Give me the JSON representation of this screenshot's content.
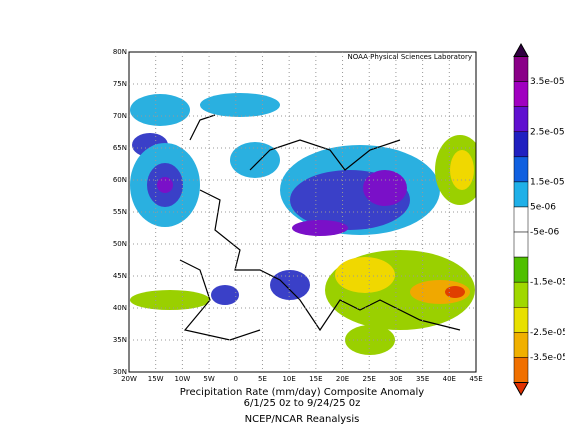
{
  "map": {
    "credit": "NOAA Physical Sciences Laboratory",
    "lon_labels": [
      "20W",
      "15W",
      "10W",
      "5W",
      "0",
      "5E",
      "10E",
      "15E",
      "20E",
      "25E",
      "30E",
      "35E",
      "40E",
      "45E"
    ],
    "lat_labels": [
      "80N",
      "75N",
      "70N",
      "65N",
      "60N",
      "55N",
      "50N",
      "45N",
      "40N",
      "35N",
      "30N"
    ]
  },
  "caption": {
    "line1": "Precipitation Rate (mm/day)   Composite Anomaly",
    "line2": "6/1/25 0z  to 9/24/25 0z",
    "line3": "NCEP/NCAR Reanalysis"
  },
  "colorbar": {
    "labels": [
      "3.5e-05",
      "2.5e-05",
      "1.5e-05",
      "5e-06",
      "-5e-06",
      "-1.5e-05",
      "-2.5e-05",
      "-3.5e-05"
    ]
  }
}
